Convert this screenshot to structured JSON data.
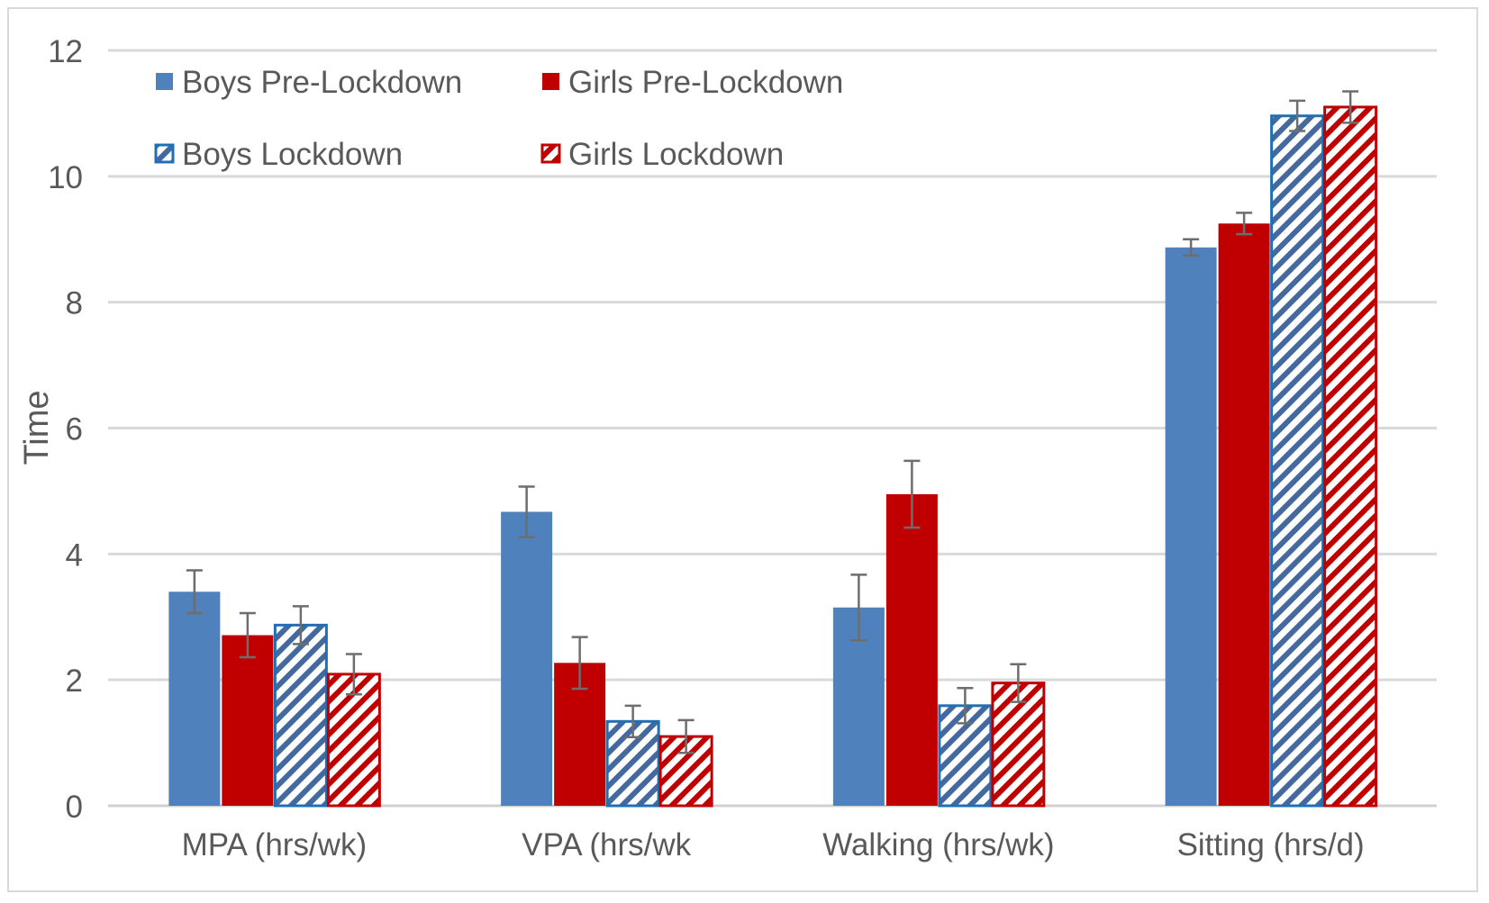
{
  "chart_data": {
    "type": "bar",
    "title": "",
    "xlabel": "",
    "ylabel": "Time",
    "ylim": [
      0,
      12
    ],
    "yticks": [
      0,
      2,
      4,
      6,
      8,
      10,
      12
    ],
    "grid": true,
    "legend_position": "top-left",
    "categories": [
      "MPA (hrs/wk)",
      "VPA (hrs/wk",
      "Walking (hrs/wk)",
      "Sitting (hrs/d)"
    ],
    "series": [
      {
        "name": "Boys Pre-Lockdown",
        "color": "#4f81bd",
        "pattern": "solid",
        "values": [
          3.4,
          4.67,
          3.15,
          8.87
        ],
        "errors": [
          0.34,
          0.4,
          0.52,
          0.13
        ]
      },
      {
        "name": "Girls Pre-Lockdown",
        "color": "#c00000",
        "pattern": "solid",
        "values": [
          2.71,
          2.27,
          4.95,
          9.25
        ],
        "errors": [
          0.35,
          0.41,
          0.53,
          0.17
        ]
      },
      {
        "name": "Boys Lockdown",
        "color": "#1f6fb4",
        "stripe_color": "#44699f",
        "pattern": "hatched",
        "values": [
          2.87,
          1.34,
          1.59,
          10.96
        ],
        "errors": [
          0.3,
          0.25,
          0.28,
          0.24
        ]
      },
      {
        "name": "Girls Lockdown",
        "color": "#c00000",
        "stripe_color": "#c00000",
        "pattern": "hatched",
        "values": [
          2.09,
          1.1,
          1.95,
          11.1
        ],
        "errors": [
          0.32,
          0.26,
          0.3,
          0.25
        ]
      }
    ]
  }
}
